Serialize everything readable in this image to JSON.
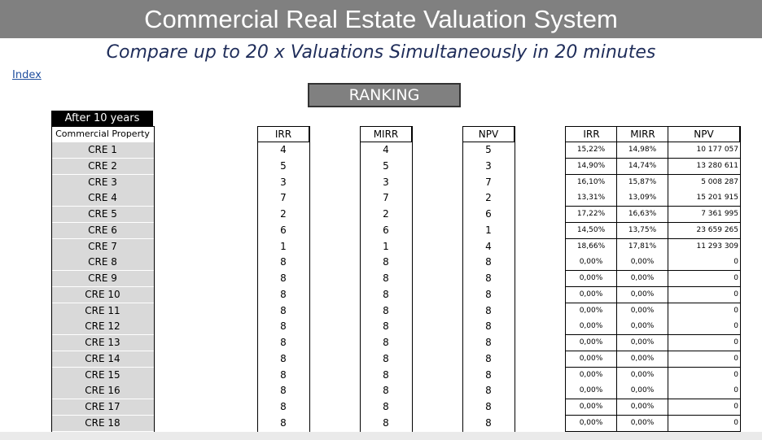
{
  "header": {
    "title": "Commercial Real Estate Valuation System",
    "subtitle": "Compare up to 20 x Valuations Simultaneously in 20 minutes"
  },
  "nav": {
    "index_link": "Index"
  },
  "ranking_label": "RANKING",
  "period_label": "After 10 years",
  "columns": {
    "property": "Commercial Property",
    "irr": "IRR",
    "mirr": "MIRR",
    "npv": "NPV",
    "val_irr": "IRR",
    "val_mirr": "MIRR",
    "val_npv": "NPV"
  },
  "rows": [
    {
      "name": "CRE 1",
      "irr_rank": "4",
      "mirr_rank": "4",
      "npv_rank": "5",
      "irr": "15,22%",
      "mirr": "14,98%",
      "npv": "10 177 057"
    },
    {
      "name": "CRE 2",
      "irr_rank": "5",
      "mirr_rank": "5",
      "npv_rank": "3",
      "irr": "14,90%",
      "mirr": "14,74%",
      "npv": "13 280 611"
    },
    {
      "name": "CRE 3",
      "irr_rank": "3",
      "mirr_rank": "3",
      "npv_rank": "7",
      "irr": "16,10%",
      "mirr": "15,87%",
      "npv": "5 008 287"
    },
    {
      "name": "CRE 4",
      "irr_rank": "7",
      "mirr_rank": "7",
      "npv_rank": "2",
      "irr": "13,31%",
      "mirr": "13,09%",
      "npv": "15 201 915"
    },
    {
      "name": "CRE 5",
      "irr_rank": "2",
      "mirr_rank": "2",
      "npv_rank": "6",
      "irr": "17,22%",
      "mirr": "16,63%",
      "npv": "7 361 995"
    },
    {
      "name": "CRE 6",
      "irr_rank": "6",
      "mirr_rank": "6",
      "npv_rank": "1",
      "irr": "14,50%",
      "mirr": "13,75%",
      "npv": "23 659 265"
    },
    {
      "name": "CRE 7",
      "irr_rank": "1",
      "mirr_rank": "1",
      "npv_rank": "4",
      "irr": "18,66%",
      "mirr": "17,81%",
      "npv": "11 293 309"
    },
    {
      "name": "CRE 8",
      "irr_rank": "8",
      "mirr_rank": "8",
      "npv_rank": "8",
      "irr": "0,00%",
      "mirr": "0,00%",
      "npv": "0"
    },
    {
      "name": "CRE 9",
      "irr_rank": "8",
      "mirr_rank": "8",
      "npv_rank": "8",
      "irr": "0,00%",
      "mirr": "0,00%",
      "npv": "0"
    },
    {
      "name": "CRE 10",
      "irr_rank": "8",
      "mirr_rank": "8",
      "npv_rank": "8",
      "irr": "0,00%",
      "mirr": "0,00%",
      "npv": "0"
    },
    {
      "name": "CRE 11",
      "irr_rank": "8",
      "mirr_rank": "8",
      "npv_rank": "8",
      "irr": "0,00%",
      "mirr": "0,00%",
      "npv": "0"
    },
    {
      "name": "CRE 12",
      "irr_rank": "8",
      "mirr_rank": "8",
      "npv_rank": "8",
      "irr": "0,00%",
      "mirr": "0,00%",
      "npv": "0"
    },
    {
      "name": "CRE 13",
      "irr_rank": "8",
      "mirr_rank": "8",
      "npv_rank": "8",
      "irr": "0,00%",
      "mirr": "0,00%",
      "npv": "0"
    },
    {
      "name": "CRE 14",
      "irr_rank": "8",
      "mirr_rank": "8",
      "npv_rank": "8",
      "irr": "0,00%",
      "mirr": "0,00%",
      "npv": "0"
    },
    {
      "name": "CRE 15",
      "irr_rank": "8",
      "mirr_rank": "8",
      "npv_rank": "8",
      "irr": "0,00%",
      "mirr": "0,00%",
      "npv": "0"
    },
    {
      "name": "CRE 16",
      "irr_rank": "8",
      "mirr_rank": "8",
      "npv_rank": "8",
      "irr": "0,00%",
      "mirr": "0,00%",
      "npv": "0"
    },
    {
      "name": "CRE 17",
      "irr_rank": "8",
      "mirr_rank": "8",
      "npv_rank": "8",
      "irr": "0,00%",
      "mirr": "0,00%",
      "npv": "0"
    },
    {
      "name": "CRE 18",
      "irr_rank": "8",
      "mirr_rank": "8",
      "npv_rank": "8",
      "irr": "0,00%",
      "mirr": "0,00%",
      "npv": "0"
    }
  ]
}
